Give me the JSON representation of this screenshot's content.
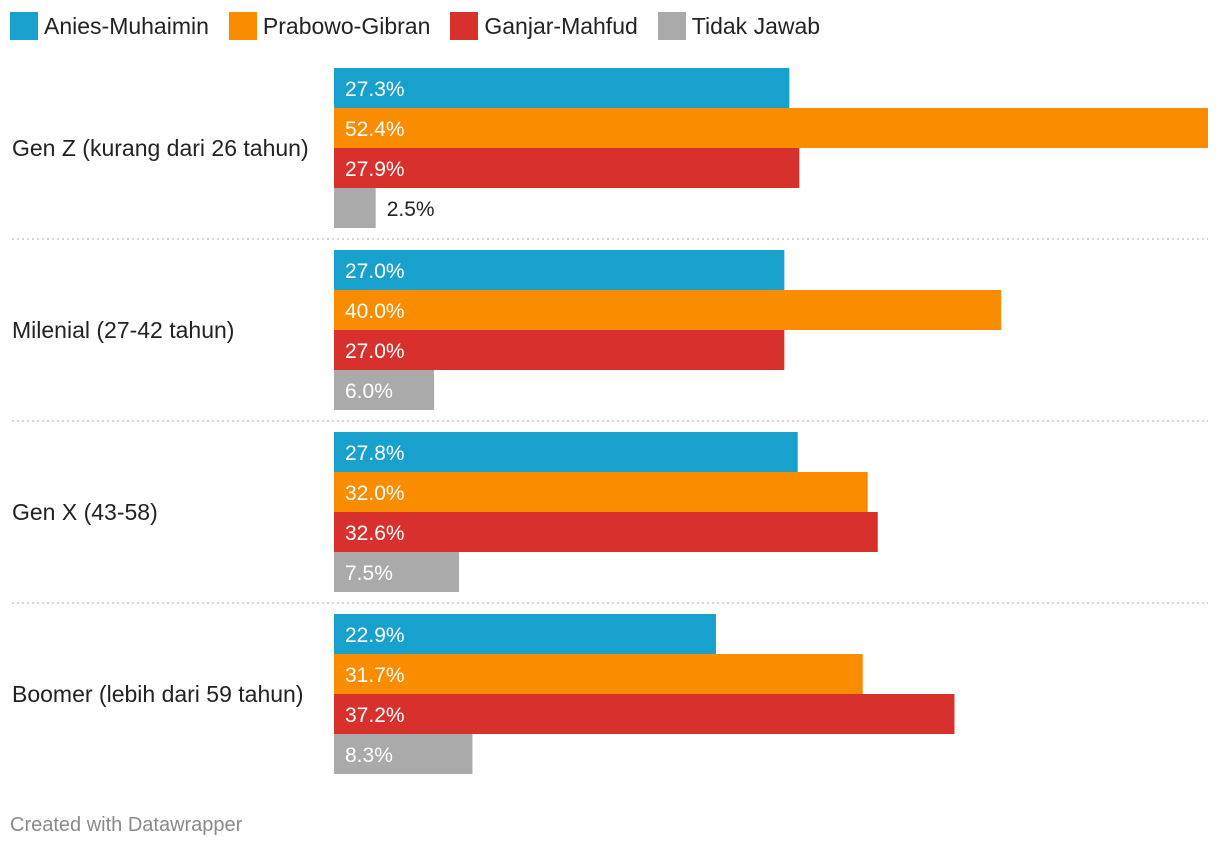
{
  "chart_data": {
    "type": "bar",
    "orientation": "horizontal",
    "categories": [
      "Gen Z (kurang dari 26 tahun)",
      "Milenial (27-42 tahun)",
      "Gen X (43-58)",
      "Boomer (lebih dari 59 tahun)"
    ],
    "series": [
      {
        "name": "Anies-Muhaimin",
        "color": "#18a1cd",
        "values": [
          27.3,
          27.0,
          27.8,
          22.9
        ]
      },
      {
        "name": "Prabowo-Gibran",
        "color": "#fa8c00",
        "values": [
          52.4,
          40.0,
          32.0,
          31.7
        ]
      },
      {
        "name": "Ganjar-Mahfud",
        "color": "#d8302d",
        "values": [
          27.9,
          27.0,
          32.6,
          37.2
        ]
      },
      {
        "name": "Tidak Jawab",
        "color": "#aaaaaa",
        "values": [
          2.5,
          6.0,
          7.5,
          8.3
        ]
      }
    ],
    "value_format": "{v}%",
    "xlim": [
      0,
      52.4
    ],
    "legend_position": "top-left",
    "grid": false
  },
  "footer": "Created with Datawrapper"
}
